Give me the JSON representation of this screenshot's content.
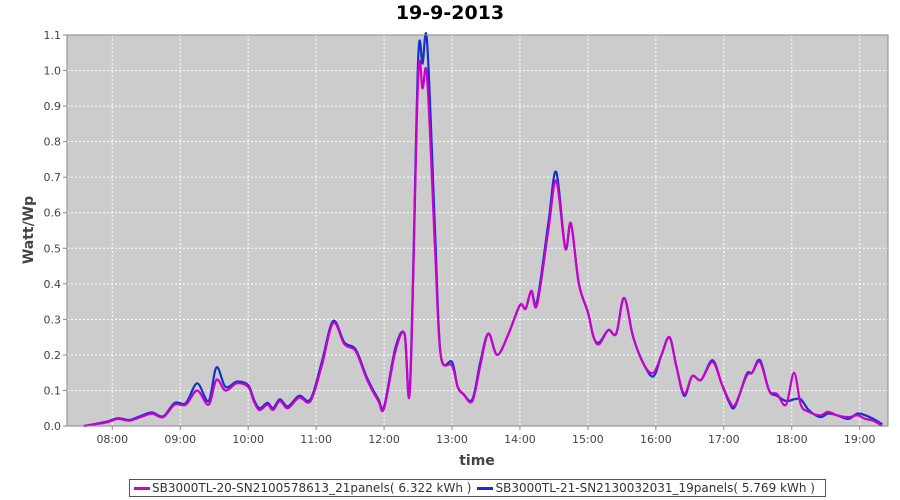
{
  "chart_data": {
    "type": "line",
    "title": "19-9-2013",
    "xlabel": "time",
    "ylabel": "Watt/Wp",
    "xlim": [
      "07:20",
      "19:25"
    ],
    "ylim": [
      0,
      1.1
    ],
    "x_ticks": [
      "08:00",
      "09:00",
      "10:00",
      "11:00",
      "12:00",
      "13:00",
      "14:00",
      "15:00",
      "16:00",
      "17:00",
      "18:00",
      "19:00"
    ],
    "y_ticks": [
      "0.0",
      "0.1",
      "0.2",
      "0.3",
      "0.4",
      "0.5",
      "0.6",
      "0.7",
      "0.8",
      "0.9",
      "1.0",
      "1.1"
    ],
    "grid": true,
    "legend_position": "bottom",
    "background": "#cccccc",
    "series": [
      {
        "name": "SB3000TL-20-SN2100578613_21panels( 6.322 kWh )",
        "color": "#cc00cc",
        "points": [
          [
            "07:35",
            0.0
          ],
          [
            "07:45",
            0.005
          ],
          [
            "07:55",
            0.01
          ],
          [
            "08:05",
            0.02
          ],
          [
            "08:15",
            0.015
          ],
          [
            "08:25",
            0.025
          ],
          [
            "08:35",
            0.035
          ],
          [
            "08:45",
            0.025
          ],
          [
            "08:55",
            0.06
          ],
          [
            "09:05",
            0.06
          ],
          [
            "09:15",
            0.1
          ],
          [
            "09:25",
            0.06
          ],
          [
            "09:32",
            0.13
          ],
          [
            "09:40",
            0.1
          ],
          [
            "09:50",
            0.12
          ],
          [
            "10:00",
            0.11
          ],
          [
            "10:05",
            0.07
          ],
          [
            "10:10",
            0.045
          ],
          [
            "10:17",
            0.06
          ],
          [
            "10:22",
            0.045
          ],
          [
            "10:28",
            0.07
          ],
          [
            "10:35",
            0.05
          ],
          [
            "10:45",
            0.08
          ],
          [
            "10:55",
            0.07
          ],
          [
            "11:05",
            0.17
          ],
          [
            "11:15",
            0.29
          ],
          [
            "11:25",
            0.23
          ],
          [
            "11:35",
            0.21
          ],
          [
            "11:45",
            0.13
          ],
          [
            "11:55",
            0.07
          ],
          [
            "12:00",
            0.05
          ],
          [
            "12:10",
            0.21
          ],
          [
            "12:18",
            0.26
          ],
          [
            "12:23",
            0.11
          ],
          [
            "12:30",
            0.97
          ],
          [
            "12:34",
            0.95
          ],
          [
            "12:38",
            0.98
          ],
          [
            "12:45",
            0.5
          ],
          [
            "12:50",
            0.2
          ],
          [
            "13:00",
            0.17
          ],
          [
            "13:05",
            0.11
          ],
          [
            "13:10",
            0.09
          ],
          [
            "13:18",
            0.07
          ],
          [
            "13:25",
            0.17
          ],
          [
            "13:32",
            0.26
          ],
          [
            "13:40",
            0.2
          ],
          [
            "13:50",
            0.26
          ],
          [
            "14:00",
            0.34
          ],
          [
            "14:05",
            0.33
          ],
          [
            "14:10",
            0.38
          ],
          [
            "14:15",
            0.34
          ],
          [
            "14:25",
            0.55
          ],
          [
            "14:32",
            0.69
          ],
          [
            "14:40",
            0.5
          ],
          [
            "14:45",
            0.57
          ],
          [
            "14:52",
            0.4
          ],
          [
            "15:00",
            0.32
          ],
          [
            "15:05",
            0.25
          ],
          [
            "15:10",
            0.23
          ],
          [
            "15:18",
            0.27
          ],
          [
            "15:25",
            0.26
          ],
          [
            "15:32",
            0.36
          ],
          [
            "15:40",
            0.25
          ],
          [
            "15:50",
            0.17
          ],
          [
            "15:58",
            0.15
          ],
          [
            "16:05",
            0.2
          ],
          [
            "16:12",
            0.25
          ],
          [
            "16:18",
            0.17
          ],
          [
            "16:25",
            0.09
          ],
          [
            "16:32",
            0.14
          ],
          [
            "16:40",
            0.13
          ],
          [
            "16:50",
            0.18
          ],
          [
            "16:58",
            0.12
          ],
          [
            "17:05",
            0.07
          ],
          [
            "17:10",
            0.06
          ],
          [
            "17:20",
            0.14
          ],
          [
            "17:25",
            0.15
          ],
          [
            "17:32",
            0.18
          ],
          [
            "17:40",
            0.1
          ],
          [
            "17:47",
            0.09
          ],
          [
            "17:55",
            0.06
          ],
          [
            "18:02",
            0.15
          ],
          [
            "18:08",
            0.06
          ],
          [
            "18:15",
            0.04
          ],
          [
            "18:25",
            0.03
          ],
          [
            "18:32",
            0.04
          ],
          [
            "18:40",
            0.03
          ],
          [
            "18:50",
            0.025
          ],
          [
            "18:58",
            0.03
          ],
          [
            "19:05",
            0.02
          ],
          [
            "19:12",
            0.015
          ],
          [
            "19:20",
            0.0
          ]
        ]
      },
      {
        "name": "SB3000TL-21-SN2130032031_19panels( 5.769 kWh )",
        "color": "#1133cc",
        "points": [
          [
            "07:35",
            0.0
          ],
          [
            "07:45",
            0.006
          ],
          [
            "07:55",
            0.012
          ],
          [
            "08:05",
            0.022
          ],
          [
            "08:15",
            0.017
          ],
          [
            "08:25",
            0.028
          ],
          [
            "08:35",
            0.038
          ],
          [
            "08:45",
            0.027
          ],
          [
            "08:55",
            0.065
          ],
          [
            "09:05",
            0.065
          ],
          [
            "09:15",
            0.12
          ],
          [
            "09:25",
            0.07
          ],
          [
            "09:32",
            0.165
          ],
          [
            "09:40",
            0.11
          ],
          [
            "09:50",
            0.125
          ],
          [
            "10:00",
            0.115
          ],
          [
            "10:05",
            0.075
          ],
          [
            "10:10",
            0.05
          ],
          [
            "10:17",
            0.065
          ],
          [
            "10:22",
            0.05
          ],
          [
            "10:28",
            0.075
          ],
          [
            "10:35",
            0.055
          ],
          [
            "10:45",
            0.085
          ],
          [
            "10:55",
            0.075
          ],
          [
            "11:05",
            0.18
          ],
          [
            "11:15",
            0.295
          ],
          [
            "11:25",
            0.235
          ],
          [
            "11:35",
            0.215
          ],
          [
            "11:45",
            0.135
          ],
          [
            "11:55",
            0.075
          ],
          [
            "12:00",
            0.055
          ],
          [
            "12:10",
            0.22
          ],
          [
            "12:18",
            0.26
          ],
          [
            "12:23",
            0.12
          ],
          [
            "12:30",
            1.02
          ],
          [
            "12:34",
            1.02
          ],
          [
            "12:38",
            1.08
          ],
          [
            "12:45",
            0.55
          ],
          [
            "12:50",
            0.2
          ],
          [
            "13:00",
            0.18
          ],
          [
            "13:05",
            0.11
          ],
          [
            "13:10",
            0.09
          ],
          [
            "13:18",
            0.075
          ],
          [
            "13:25",
            0.18
          ],
          [
            "13:32",
            0.26
          ],
          [
            "13:40",
            0.2
          ],
          [
            "13:50",
            0.26
          ],
          [
            "14:00",
            0.34
          ],
          [
            "14:05",
            0.33
          ],
          [
            "14:10",
            0.38
          ],
          [
            "14:15",
            0.35
          ],
          [
            "14:25",
            0.57
          ],
          [
            "14:32",
            0.715
          ],
          [
            "14:40",
            0.5
          ],
          [
            "14:45",
            0.57
          ],
          [
            "14:52",
            0.4
          ],
          [
            "15:00",
            0.32
          ],
          [
            "15:05",
            0.25
          ],
          [
            "15:10",
            0.235
          ],
          [
            "15:18",
            0.27
          ],
          [
            "15:25",
            0.26
          ],
          [
            "15:32",
            0.36
          ],
          [
            "15:40",
            0.25
          ],
          [
            "15:50",
            0.17
          ],
          [
            "15:58",
            0.14
          ],
          [
            "16:05",
            0.2
          ],
          [
            "16:12",
            0.25
          ],
          [
            "16:18",
            0.17
          ],
          [
            "16:25",
            0.085
          ],
          [
            "16:32",
            0.14
          ],
          [
            "16:40",
            0.13
          ],
          [
            "16:50",
            0.185
          ],
          [
            "16:58",
            0.12
          ],
          [
            "17:05",
            0.065
          ],
          [
            "17:10",
            0.055
          ],
          [
            "17:20",
            0.145
          ],
          [
            "17:25",
            0.15
          ],
          [
            "17:32",
            0.185
          ],
          [
            "17:40",
            0.1
          ],
          [
            "17:47",
            0.085
          ],
          [
            "17:55",
            0.07
          ],
          [
            "18:02",
            0.075
          ],
          [
            "18:08",
            0.075
          ],
          [
            "18:15",
            0.045
          ],
          [
            "18:25",
            0.025
          ],
          [
            "18:32",
            0.035
          ],
          [
            "18:40",
            0.03
          ],
          [
            "18:50",
            0.02
          ],
          [
            "18:58",
            0.035
          ],
          [
            "19:05",
            0.03
          ],
          [
            "19:12",
            0.02
          ],
          [
            "19:20",
            0.005
          ]
        ]
      }
    ]
  }
}
